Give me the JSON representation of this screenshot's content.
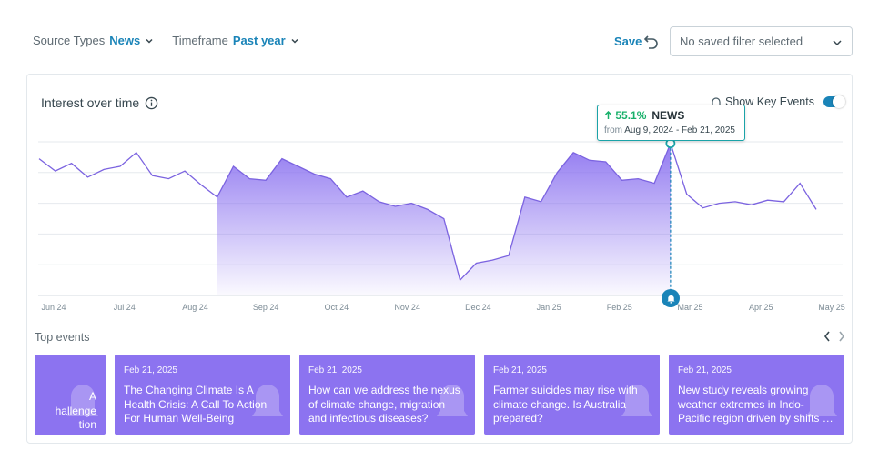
{
  "filters": {
    "source_types": {
      "label": "Source Types",
      "value": "News"
    },
    "timeframe": {
      "label": "Timeframe",
      "value": "Past year"
    }
  },
  "saved_filters": {
    "save_label": "Save",
    "selected": "No saved filter selected"
  },
  "chart_panel": {
    "title": "Interest over time",
    "key_events_label": "Show Key Events",
    "key_events_enabled": true
  },
  "tooltip": {
    "change": "55.1%",
    "source": "NEWS",
    "from_label": "from",
    "date_range": "Aug 9, 2024 - Feb 21, 2025"
  },
  "chart_data": {
    "type": "area",
    "title": "Interest over time",
    "x_tick_labels": [
      "Jun 24",
      "Jul 24",
      "Aug 24",
      "Sep 24",
      "Oct 24",
      "Nov 24",
      "Dec 24",
      "Jan 25",
      "Feb 25",
      "Mar 25",
      "Apr 25",
      "May 25"
    ],
    "ylim": [
      0,
      100
    ],
    "grid": true,
    "highlight_range": [
      "Aug 9, 2024",
      "Feb 21, 2025"
    ],
    "marker_date": "Feb 21, 2025",
    "values": [
      89,
      81,
      86,
      77,
      82,
      84,
      93,
      78,
      76,
      81,
      72,
      64,
      84,
      76,
      75,
      89,
      84,
      79,
      76,
      64,
      68,
      61,
      58,
      60,
      56,
      50,
      10,
      21,
      23,
      26,
      64,
      61,
      80,
      93,
      88,
      87,
      75,
      76,
      73,
      99,
      66,
      57,
      60,
      61,
      59,
      62,
      61,
      73,
      56
    ]
  },
  "top_events": {
    "title": "Top events",
    "cards": [
      {
        "date": "",
        "headline": "A\nhallenge\ntion"
      },
      {
        "date": "Feb 21, 2025",
        "headline": "The Changing Climate Is A Health Crisis: A Call To Action For Human Well-Being"
      },
      {
        "date": "Feb 21, 2025",
        "headline": "How can we address the nexus of climate change, migration and infectious diseases?"
      },
      {
        "date": "Feb 21, 2025",
        "headline": "Farmer suicides may rise with climate change. Is Australia prepared?"
      },
      {
        "date": "Feb 21, 2025",
        "headline": "New study reveals growing weather extremes in Indo-Pacific region driven by shifts in sea currents"
      }
    ]
  },
  "colors": {
    "accent": "#1a84b8",
    "area": "#8c73f0",
    "line": "#7b63e0",
    "positive": "#18b06a",
    "tooltip_border": "#1aa3a8"
  }
}
